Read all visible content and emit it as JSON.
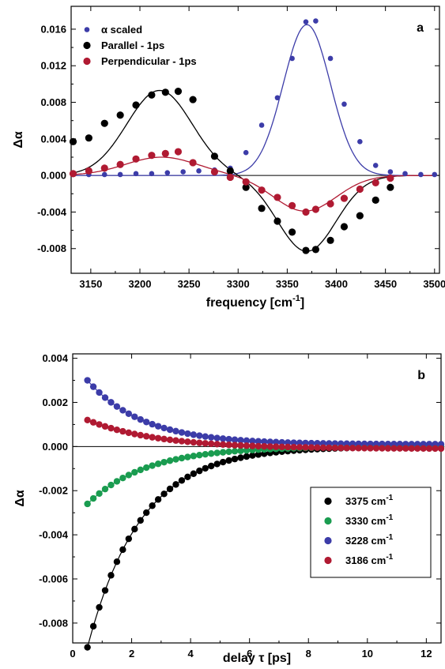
{
  "chart_data": [
    {
      "type": "scatter",
      "panel_label": "a",
      "xlabel": "frequency [cm",
      "xlabel_sup": "-1",
      "xlabel_end": "]",
      "ylabel": "Δα",
      "xlim": [
        3130,
        3505
      ],
      "ylim": [
        -0.0107,
        0.0185
      ],
      "xticks": [
        3150,
        3200,
        3250,
        3300,
        3350,
        3400,
        3450,
        3500
      ],
      "yticks": [
        -0.008,
        -0.004,
        0.0,
        0.004,
        0.008,
        0.012,
        0.016
      ],
      "ytick_labels": [
        "-0.008",
        "-0.004",
        "0.000",
        "0.004",
        "0.008",
        "0.012",
        "0.016"
      ],
      "zero_line": true,
      "legend_position": "top-left",
      "series": [
        {
          "name": "α scaled",
          "color": "#3c3ca8",
          "marker_size": "small",
          "x": [
            3132,
            3148,
            3164,
            3180,
            3196,
            3212,
            3228,
            3244,
            3260,
            3276,
            3292,
            3308,
            3324,
            3340,
            3355,
            3369,
            3379,
            3394,
            3408,
            3424,
            3440,
            3455,
            3470,
            3486,
            3500
          ],
          "y": [
            0.0001,
            0.0001,
            0.0001,
            0.0001,
            0.0002,
            0.0002,
            0.0003,
            0.0004,
            0.0005,
            0.0006,
            0.0008,
            0.0025,
            0.0055,
            0.0085,
            0.0128,
            0.0168,
            0.0169,
            0.0128,
            0.0078,
            0.0037,
            0.0011,
            0.0004,
            0.0002,
            0.0001,
            0.0001
          ]
        },
        {
          "name": "Parallel - 1ps",
          "color": "#000000",
          "marker_size": "large",
          "x": [
            3132,
            3148,
            3164,
            3180,
            3196,
            3212,
            3226,
            3239,
            3254,
            3276,
            3292,
            3308,
            3324,
            3340,
            3355,
            3369,
            3379,
            3394,
            3408,
            3424,
            3440,
            3455
          ],
          "y": [
            0.0037,
            0.0041,
            0.0057,
            0.0066,
            0.0077,
            0.0088,
            0.0091,
            0.0092,
            0.0083,
            0.0021,
            0.0005,
            -0.0013,
            -0.0036,
            -0.005,
            -0.0062,
            -0.0082,
            -0.0081,
            -0.0071,
            -0.0056,
            -0.0044,
            -0.0027,
            -0.0013
          ]
        },
        {
          "name": "Perpendicular - 1ps",
          "color": "#b01a32",
          "marker_size": "large",
          "x": [
            3132,
            3148,
            3164,
            3180,
            3196,
            3212,
            3226,
            3239,
            3254,
            3276,
            3292,
            3308,
            3324,
            3340,
            3355,
            3369,
            3379,
            3394,
            3408,
            3424,
            3440,
            3455
          ],
          "y": [
            0.0002,
            0.0005,
            0.0008,
            0.0012,
            0.0018,
            0.0022,
            0.0024,
            0.0026,
            0.0014,
            0.0004,
            -0.0002,
            -0.0007,
            -0.0016,
            -0.0024,
            -0.0033,
            -0.004,
            -0.0037,
            -0.0031,
            -0.0025,
            -0.0015,
            -0.0008,
            -0.0003
          ]
        }
      ]
    },
    {
      "type": "scatter",
      "panel_label": "b",
      "xlabel": "delay τ [ps]",
      "ylabel": "Δα",
      "xlim": [
        0,
        12.5
      ],
      "ylim": [
        -0.0089,
        0.0042
      ],
      "xticks": [
        0,
        2,
        4,
        6,
        8,
        10,
        12
      ],
      "yticks": [
        -0.008,
        -0.006,
        -0.004,
        -0.002,
        0.0,
        0.002,
        0.004
      ],
      "ytick_labels": [
        "-0.008",
        "-0.006",
        "-0.004",
        "-0.002",
        "0.000",
        "0.002",
        "0.004"
      ],
      "zero_line": true,
      "legend_position": "lower-right",
      "series": [
        {
          "name": "3375 cm",
          "name_sup": "-1",
          "color": "#000000",
          "amplitude": -0.0091,
          "tau": 1.8,
          "offset": 0.0,
          "x_start": 0.5,
          "x_end": 12.5,
          "x_step": 0.2
        },
        {
          "name": "3330 cm",
          "name_sup": "-1",
          "color": "#1a9c50",
          "amplitude": -0.0026,
          "tau": 2.0,
          "offset": 0.0,
          "x_start": 0.5,
          "x_end": 12.5,
          "x_step": 0.2
        },
        {
          "name": "3228 cm",
          "name_sup": "-1",
          "color": "#3c3ca8",
          "amplitude": 0.0029,
          "tau": 1.9,
          "offset": 0.0001,
          "x_start": 0.5,
          "x_end": 12.5,
          "x_step": 0.2
        },
        {
          "name": "3186 cm",
          "name_sup": "-1",
          "color": "#b01a32",
          "amplitude": 0.0013,
          "tau": 2.4,
          "offset": -0.0001,
          "x_start": 0.5,
          "x_end": 12.5,
          "x_step": 0.2
        }
      ]
    }
  ]
}
